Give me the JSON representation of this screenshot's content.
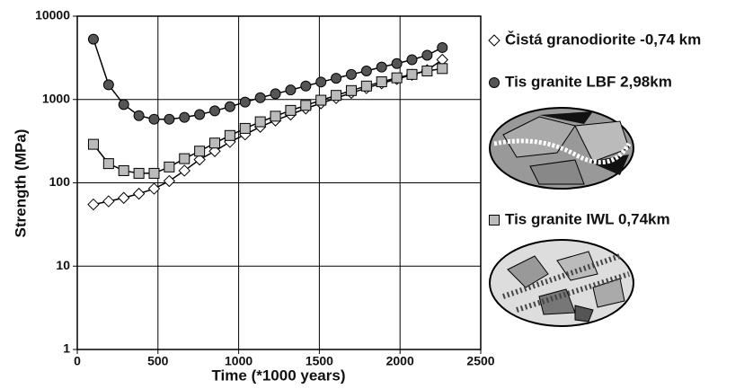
{
  "chart_data": {
    "type": "line",
    "x_label": "Time (*1000 years)",
    "y_label": "Strength (MPa)",
    "yscale": "log",
    "grid": true,
    "xlim": [
      0,
      2500
    ],
    "xticks": [
      0,
      500,
      1000,
      1500,
      2000,
      2500
    ],
    "ylim": [
      1,
      10000
    ],
    "yticks": [
      1,
      10,
      100,
      1000,
      10000
    ],
    "x": [
      100,
      194,
      288,
      382,
      476,
      570,
      664,
      758,
      852,
      946,
      1040,
      1134,
      1228,
      1322,
      1416,
      1510,
      1604,
      1698,
      1792,
      1886,
      1980,
      2074,
      2168,
      2262
    ],
    "series": [
      {
        "name": "Čistá granodiorite -0,74 km",
        "marker": "diamond",
        "color": "#ffffff",
        "values": [
          55,
          60,
          66,
          74,
          85,
          105,
          140,
          190,
          240,
          310,
          380,
          470,
          560,
          660,
          780,
          900,
          1040,
          1200,
          1370,
          1560,
          1760,
          1980,
          2250,
          3000
        ]
      },
      {
        "name": "Tis granite LBF 2,98km",
        "marker": "circle",
        "color": "#555555",
        "values": [
          5300,
          1500,
          870,
          640,
          580,
          580,
          610,
          660,
          730,
          820,
          930,
          1050,
          1170,
          1300,
          1450,
          1620,
          1800,
          2000,
          2200,
          2450,
          2700,
          3000,
          3400,
          4200
        ]
      },
      {
        "name": "Tis granite IWL 0,74km",
        "marker": "square",
        "color": "#bbbbbb",
        "values": [
          290,
          170,
          140,
          130,
          130,
          155,
          195,
          240,
          300,
          370,
          450,
          540,
          630,
          740,
          850,
          980,
          1120,
          1280,
          1450,
          1630,
          1820,
          2000,
          2200,
          2350
        ]
      }
    ]
  }
}
